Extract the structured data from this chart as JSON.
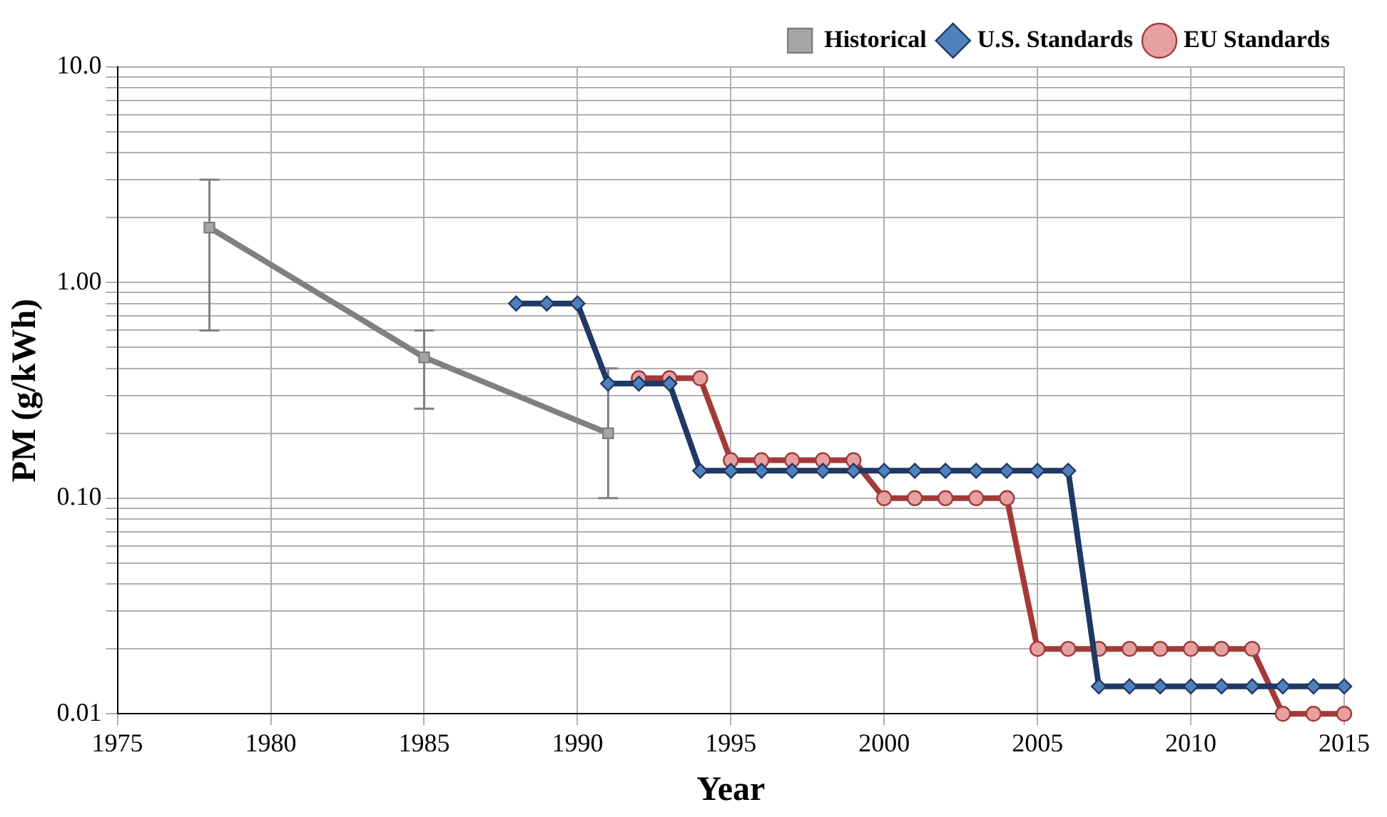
{
  "chart_data": {
    "type": "line",
    "xlabel": "Year",
    "ylabel": "PM (g/kWh)",
    "log": "y",
    "grid": true,
    "legend": "top right",
    "line_style": "solid",
    "xlim": [
      1975,
      2015
    ],
    "xticks": [
      1975,
      1980,
      1985,
      1990,
      1995,
      2000,
      2005,
      2010,
      2015
    ],
    "ylim": [
      0.01,
      10
    ],
    "yticks": [
      {
        "value": 0.01,
        "label": "0.01"
      },
      {
        "value": 0.02,
        "label": null
      },
      {
        "value": 0.03,
        "label": null
      },
      {
        "value": 0.04,
        "label": null
      },
      {
        "value": 0.05,
        "label": null
      },
      {
        "value": 0.06,
        "label": null
      },
      {
        "value": 0.07,
        "label": null
      },
      {
        "value": 0.08,
        "label": null
      },
      {
        "value": 0.09,
        "label": null
      },
      {
        "value": 0.1,
        "label": "0.10"
      },
      {
        "value": 0.2,
        "label": null
      },
      {
        "value": 0.3,
        "label": null
      },
      {
        "value": 0.4,
        "label": null
      },
      {
        "value": 0.5,
        "label": null
      },
      {
        "value": 0.6,
        "label": null
      },
      {
        "value": 0.7,
        "label": null
      },
      {
        "value": 0.8,
        "label": null
      },
      {
        "value": 0.9,
        "label": null
      },
      {
        "value": 1,
        "label": "1.00"
      },
      {
        "value": 2,
        "label": null
      },
      {
        "value": 3,
        "label": null
      },
      {
        "value": 4,
        "label": null
      },
      {
        "value": 5,
        "label": null
      },
      {
        "value": 6,
        "label": null
      },
      {
        "value": 7,
        "label": null
      },
      {
        "value": 8,
        "label": null
      },
      {
        "value": 9,
        "label": null
      },
      {
        "value": 10,
        "label": "10.0"
      }
    ],
    "series": [
      {
        "name": "Historical",
        "color": "#808080",
        "marker": "square",
        "x": [
          1978,
          1985,
          1991
        ],
        "values": [
          1.8,
          0.45,
          0.2
        ],
        "errors": [
          [
            0.6,
            3.0
          ],
          [
            0.26,
            0.6
          ],
          [
            0.1,
            0.4
          ]
        ]
      },
      {
        "name": "U.S. Standards",
        "color": "#1f3864",
        "marker": "diamond",
        "x": [
          1988,
          1989,
          1990,
          1991,
          1992,
          1993,
          1994,
          1995,
          1996,
          1997,
          1998,
          1999,
          2000,
          2001,
          2002,
          2003,
          2004,
          2005,
          2006,
          2007,
          2008,
          2009,
          2010,
          2011,
          2012,
          2013,
          2014,
          2015
        ],
        "values": [
          0.8,
          0.8,
          0.8,
          0.34,
          0.34,
          0.34,
          0.134,
          0.134,
          0.134,
          0.134,
          0.134,
          0.134,
          0.134,
          0.134,
          0.134,
          0.134,
          0.134,
          0.134,
          0.134,
          0.0134,
          0.0134,
          0.0134,
          0.0134,
          0.0134,
          0.0134,
          0.0134,
          0.0134,
          0.0134
        ]
      },
      {
        "name": "EU Standards",
        "color": "#a33a3a",
        "marker": "circle",
        "x": [
          1992,
          1993,
          1994,
          1995,
          1996,
          1997,
          1998,
          1999,
          2000,
          2001,
          2002,
          2003,
          2004,
          2005,
          2006,
          2007,
          2008,
          2009,
          2010,
          2011,
          2012,
          2013,
          2014,
          2015
        ],
        "values": [
          0.36,
          0.36,
          0.36,
          0.15,
          0.15,
          0.15,
          0.15,
          0.15,
          0.1,
          0.1,
          0.1,
          0.1,
          0.1,
          0.02,
          0.02,
          0.02,
          0.02,
          0.02,
          0.02,
          0.02,
          0.02,
          0.01,
          0.01,
          0.01
        ]
      }
    ]
  }
}
